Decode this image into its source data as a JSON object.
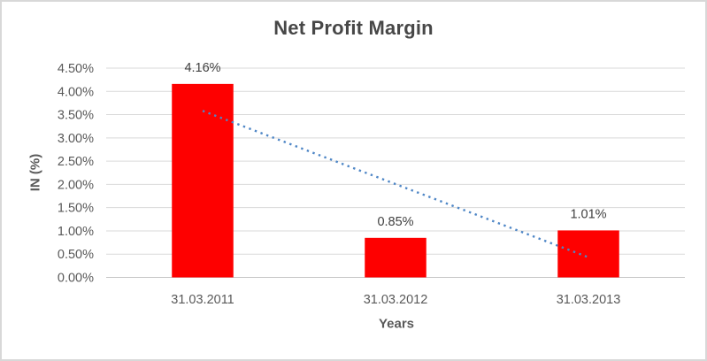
{
  "chart_data": {
    "type": "bar",
    "title": "Net Profit Margin",
    "xlabel": "Years",
    "ylabel": "IN (%)",
    "categories": [
      "31.03.2011",
      "31.03.2012",
      "31.03.2013"
    ],
    "series": [
      {
        "name": "Net Profit Margin",
        "values": [
          4.16,
          0.85,
          1.01
        ]
      }
    ],
    "data_labels": [
      "4.16%",
      "0.85%",
      "1.01%"
    ],
    "ylim": [
      0,
      4.5
    ],
    "ytick_step": 0.5,
    "ytick_labels": [
      "0.00%",
      "0.50%",
      "1.00%",
      "1.50%",
      "2.00%",
      "2.50%",
      "3.00%",
      "3.50%",
      "4.00%",
      "4.50%"
    ],
    "grid": true,
    "legend": "none",
    "trendline": {
      "type": "linear",
      "style": "dotted",
      "start_value": 3.58,
      "end_value": 0.43
    },
    "colors": {
      "bar": "#fe0000",
      "trendline": "#4e86c6",
      "gridline": "#d9d9d9",
      "axis_line": "#c6c6c6",
      "title_text": "#474747",
      "axis_text": "#595959",
      "data_label_text": "#404040",
      "chart_border": "#d8d8d8",
      "background": "#ffffff"
    }
  }
}
